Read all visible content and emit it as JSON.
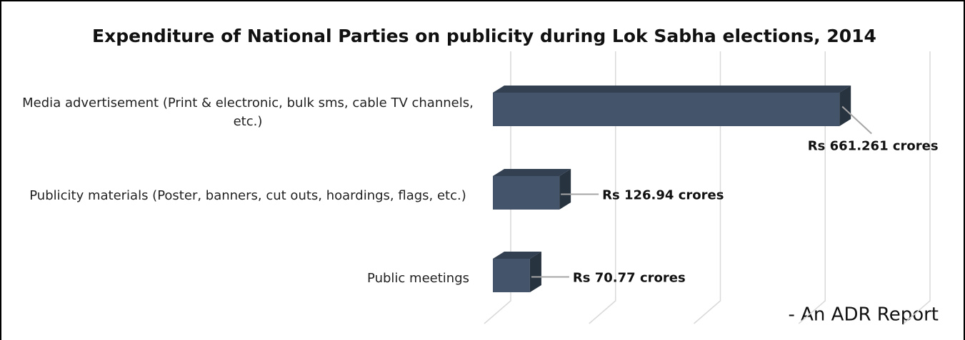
{
  "chart_data": {
    "type": "bar",
    "orientation": "horizontal",
    "title": "Expenditure of National Parties on publicity during Lok Sabha elections, 2014",
    "categories": [
      "Media advertisement (Print & electronic, bulk sms, cable TV channels, etc.)",
      "Publicity materials (Poster, banners, cut outs, hoardings, flags, etc.)",
      "Public meetings"
    ],
    "values": [
      661.261,
      126.94,
      70.77
    ],
    "value_labels": [
      "Rs 661.261 crores",
      "Rs 126.94 crores",
      "Rs 70.77 crores"
    ],
    "color": "#44546a",
    "xlim": [
      0,
      800
    ],
    "xticks": [
      0,
      200,
      400,
      600,
      800
    ],
    "grid": true,
    "annotation": "- An ADR Report"
  }
}
